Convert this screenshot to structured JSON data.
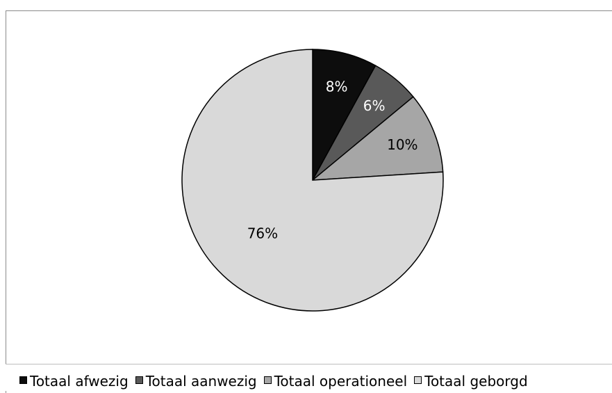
{
  "chart_data": {
    "type": "pie",
    "title": "",
    "slices": [
      {
        "name": "Totaal afwezig",
        "value": 8,
        "label": "8%",
        "color": "#0d0d0d",
        "label_color": "#ffffff"
      },
      {
        "name": "Totaal aanwezig",
        "value": 6,
        "label": "6%",
        "color": "#595959",
        "label_color": "#ffffff"
      },
      {
        "name": "Totaal operationeel",
        "value": 10,
        "label": "10%",
        "color": "#a6a6a6",
        "label_color": "#000000"
      },
      {
        "name": "Totaal geborgd",
        "value": 76,
        "label": "76%",
        "color": "#d9d9d9",
        "label_color": "#000000"
      }
    ],
    "start_angle": "12 o'clock",
    "direction": "clockwise",
    "legend_position": "bottom"
  },
  "legend": [
    {
      "label": "Totaal afwezig",
      "color": "#0d0d0d"
    },
    {
      "label": "Totaal aanwezig",
      "color": "#595959"
    },
    {
      "label": "Totaal operationeel",
      "color": "#a6a6a6"
    },
    {
      "label": "Totaal geborgd",
      "color": "#d9d9d9"
    }
  ]
}
